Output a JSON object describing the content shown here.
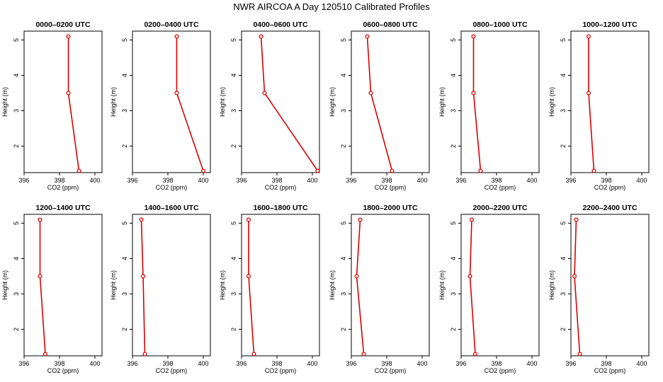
{
  "title": "NWR AIRCOA A  Day 120510  Calibrated Profiles",
  "chart_data": {
    "type": "line",
    "xlabel": "CO2 (ppm)",
    "ylabel": "Height (m)",
    "xlim": [
      396,
      400.4
    ],
    "ylim": [
      1.25,
      5.25
    ],
    "xticks": [
      "396",
      "398",
      "400"
    ],
    "yticks": [
      "2",
      "3",
      "4",
      "5"
    ],
    "heights": [
      1.3,
      3.5,
      5.1
    ],
    "panels": [
      {
        "title": "0000–0200 UTC",
        "co2": [
          399.1,
          398.5,
          398.5
        ]
      },
      {
        "title": "0200–0400 UTC",
        "co2": [
          400.0,
          398.5,
          398.5
        ]
      },
      {
        "title": "0400–0600 UTC",
        "co2": [
          400.3,
          397.3,
          397.1
        ]
      },
      {
        "title": "0600–0800 UTC",
        "co2": [
          398.3,
          397.1,
          396.9
        ]
      },
      {
        "title": "0800–1000 UTC",
        "co2": [
          397.1,
          396.7,
          396.7
        ]
      },
      {
        "title": "1000–1200 UTC",
        "co2": [
          397.3,
          397.0,
          397.0
        ]
      },
      {
        "title": "1200–1400 UTC",
        "co2": [
          397.2,
          396.9,
          396.9
        ]
      },
      {
        "title": "1400–1600 UTC",
        "co2": [
          396.7,
          396.6,
          396.5
        ]
      },
      {
        "title": "1600–1800 UTC",
        "co2": [
          396.7,
          396.4,
          396.4
        ]
      },
      {
        "title": "1800–2000 UTC",
        "co2": [
          396.7,
          396.3,
          396.5
        ]
      },
      {
        "title": "2000–2200 UTC",
        "co2": [
          396.8,
          396.5,
          396.6
        ]
      },
      {
        "title": "2200–2400 UTC",
        "co2": [
          396.5,
          396.2,
          396.3
        ]
      }
    ]
  }
}
